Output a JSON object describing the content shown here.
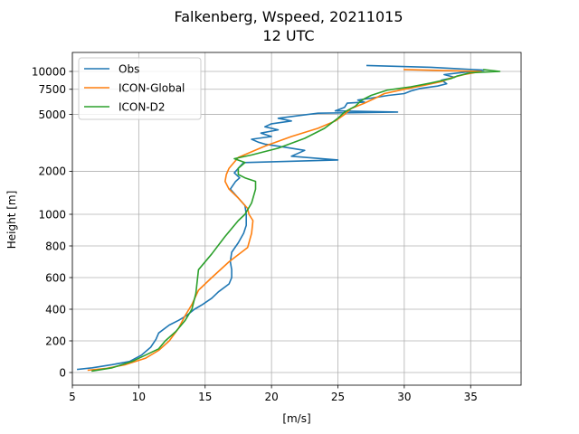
{
  "chart_data": {
    "type": "line",
    "title": "Falkenberg, Wspeed, 20211015",
    "subtitle": "12 UTC",
    "xlabel": "[m/s]",
    "ylabel": "Height [m]",
    "xlim": [
      5,
      38.8
    ],
    "y_scale": "mixed: linear 0-1000 m, logarithmic above 1000 m",
    "ylim": [
      -40,
      13500
    ],
    "xticks": [
      "5",
      "10",
      "15",
      "20",
      "25",
      "30",
      "35"
    ],
    "xtick_values": [
      5,
      10,
      15,
      20,
      25,
      30,
      35
    ],
    "yticks": [
      "0",
      "200",
      "400",
      "600",
      "800",
      "1000",
      "2000",
      "5000",
      "7500",
      "10000"
    ],
    "ytick_values": [
      0,
      200,
      400,
      600,
      800,
      1000,
      2000,
      5000,
      7500,
      10000
    ],
    "grid": true,
    "legend_position": "top-left",
    "series": [
      {
        "name": "Obs",
        "color": "#1f77b4",
        "points": [
          [
            5.4,
            20
          ],
          [
            6.5,
            30
          ],
          [
            8.0,
            50
          ],
          [
            9.3,
            70
          ],
          [
            10.2,
            110
          ],
          [
            10.9,
            160
          ],
          [
            11.3,
            210
          ],
          [
            11.5,
            250
          ],
          [
            12.3,
            300
          ],
          [
            13.0,
            330
          ],
          [
            13.6,
            360
          ],
          [
            14.2,
            400
          ],
          [
            14.8,
            430
          ],
          [
            15.5,
            470
          ],
          [
            16.0,
            510
          ],
          [
            16.8,
            560
          ],
          [
            17.0,
            600
          ],
          [
            17.0,
            650
          ],
          [
            16.9,
            700
          ],
          [
            17.0,
            760
          ],
          [
            17.5,
            820
          ],
          [
            17.9,
            880
          ],
          [
            18.1,
            930
          ],
          [
            18.1,
            980
          ],
          [
            18.1,
            1000
          ],
          [
            18.0,
            1150
          ],
          [
            17.5,
            1300
          ],
          [
            16.9,
            1500
          ],
          [
            17.3,
            1700
          ],
          [
            17.6,
            1800
          ],
          [
            17.2,
            1950
          ],
          [
            17.5,
            2100
          ],
          [
            17.9,
            2300
          ],
          [
            25.0,
            2400
          ],
          [
            21.5,
            2550
          ],
          [
            22.5,
            2800
          ],
          [
            21.0,
            2950
          ],
          [
            19.5,
            3100
          ],
          [
            19.0,
            3200
          ],
          [
            18.5,
            3350
          ],
          [
            20.0,
            3500
          ],
          [
            19.2,
            3700
          ],
          [
            20.5,
            3900
          ],
          [
            19.5,
            4100
          ],
          [
            20.0,
            4300
          ],
          [
            21.5,
            4500
          ],
          [
            20.5,
            4700
          ],
          [
            22.0,
            4900
          ],
          [
            23.5,
            5100
          ],
          [
            29.5,
            5200
          ],
          [
            24.8,
            5300
          ],
          [
            25.5,
            5600
          ],
          [
            25.7,
            6000
          ],
          [
            27.0,
            6100
          ],
          [
            26.5,
            6300
          ],
          [
            27.5,
            6500
          ],
          [
            28.8,
            6800
          ],
          [
            30.0,
            7000
          ],
          [
            30.5,
            7300
          ],
          [
            31.2,
            7600
          ],
          [
            32.5,
            7900
          ],
          [
            33.2,
            8200
          ],
          [
            32.8,
            8700
          ],
          [
            33.8,
            9100
          ],
          [
            33.0,
            9500
          ],
          [
            34.2,
            9800
          ],
          [
            36.0,
            10200
          ],
          [
            32.0,
            10700
          ],
          [
            27.2,
            11000
          ]
        ]
      },
      {
        "name": "ICON-Global",
        "color": "#ff7f0e",
        "points": [
          [
            6.2,
            15
          ],
          [
            7.5,
            25
          ],
          [
            9.0,
            50
          ],
          [
            10.5,
            90
          ],
          [
            11.5,
            140
          ],
          [
            12.3,
            200
          ],
          [
            13.0,
            280
          ],
          [
            13.5,
            360
          ],
          [
            14.0,
            430
          ],
          [
            14.5,
            520
          ],
          [
            15.5,
            600
          ],
          [
            16.8,
            700
          ],
          [
            18.2,
            790
          ],
          [
            18.5,
            880
          ],
          [
            18.6,
            960
          ],
          [
            18.3,
            1000
          ],
          [
            18.2,
            1100
          ],
          [
            17.5,
            1300
          ],
          [
            16.8,
            1500
          ],
          [
            16.5,
            1700
          ],
          [
            16.6,
            1900
          ],
          [
            16.8,
            2100
          ],
          [
            17.5,
            2500
          ],
          [
            19.5,
            3000
          ],
          [
            21.5,
            3500
          ],
          [
            23.5,
            4000
          ],
          [
            24.8,
            4500
          ],
          [
            25.5,
            5000
          ],
          [
            26.0,
            5500
          ],
          [
            27.0,
            6000
          ],
          [
            27.8,
            6500
          ],
          [
            28.5,
            7000
          ],
          [
            30.0,
            7500
          ],
          [
            31.5,
            8000
          ],
          [
            32.8,
            8500
          ],
          [
            33.5,
            9000
          ],
          [
            34.5,
            9500
          ],
          [
            35.8,
            10000
          ],
          [
            30.0,
            10300
          ]
        ]
      },
      {
        "name": "ICON-D2",
        "color": "#2ca02c",
        "points": [
          [
            6.5,
            10
          ],
          [
            8.0,
            30
          ],
          [
            9.5,
            70
          ],
          [
            10.5,
            110
          ],
          [
            11.5,
            150
          ],
          [
            12.0,
            200
          ],
          [
            12.8,
            260
          ],
          [
            13.5,
            330
          ],
          [
            14.0,
            400
          ],
          [
            14.3,
            500
          ],
          [
            14.5,
            650
          ],
          [
            15.5,
            750
          ],
          [
            16.5,
            860
          ],
          [
            17.5,
            960
          ],
          [
            18.0,
            1000
          ],
          [
            18.5,
            1200
          ],
          [
            18.8,
            1500
          ],
          [
            18.8,
            1700
          ],
          [
            18.0,
            1800
          ],
          [
            17.5,
            1900
          ],
          [
            17.5,
            2100
          ],
          [
            18.0,
            2300
          ],
          [
            17.2,
            2450
          ],
          [
            18.5,
            2600
          ],
          [
            20.5,
            2900
          ],
          [
            22.5,
            3400
          ],
          [
            24.0,
            4000
          ],
          [
            25.0,
            4700
          ],
          [
            25.5,
            5200
          ],
          [
            26.3,
            5700
          ],
          [
            26.8,
            6300
          ],
          [
            27.5,
            6800
          ],
          [
            28.7,
            7400
          ],
          [
            30.5,
            7800
          ],
          [
            32.0,
            8300
          ],
          [
            33.5,
            8900
          ],
          [
            34.0,
            9300
          ],
          [
            35.0,
            9800
          ],
          [
            37.2,
            10000
          ],
          [
            36.0,
            10300
          ]
        ]
      }
    ]
  }
}
